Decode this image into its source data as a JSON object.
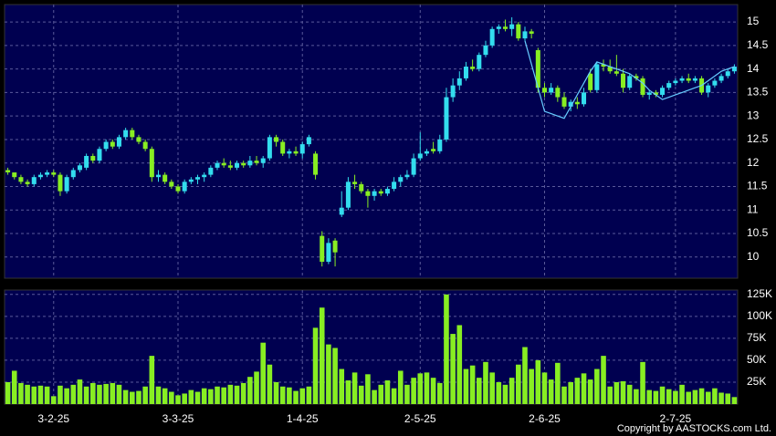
{
  "chart_data": {
    "type": "candlestick",
    "categories": [
      null,
      null,
      null,
      null,
      null,
      null,
      null,
      "3-2-25",
      null,
      null,
      null,
      null,
      null,
      null,
      null,
      null,
      null,
      null,
      null,
      null,
      null,
      null,
      null,
      null,
      null,
      null,
      "3-3-25",
      null,
      null,
      null,
      null,
      null,
      null,
      null,
      null,
      null,
      null,
      null,
      null,
      null,
      null,
      null,
      null,
      null,
      null,
      "1-4-25",
      null,
      null,
      null,
      null,
      null,
      null,
      null,
      null,
      null,
      null,
      null,
      null,
      null,
      null,
      null,
      null,
      null,
      "2-5-25",
      null,
      null,
      null,
      null,
      null,
      null,
      null,
      null,
      null,
      null,
      null,
      null,
      null,
      null,
      null,
      null,
      null,
      null,
      "2-6-25",
      null,
      null,
      null,
      null,
      null,
      null,
      null,
      null,
      null,
      null,
      null,
      null,
      null,
      null,
      null,
      null,
      null,
      null,
      null,
      "2-7-25",
      null,
      null,
      null,
      null,
      null,
      null,
      null,
      null,
      null
    ],
    "open": [
      11.85,
      11.8,
      11.7,
      11.6,
      11.55,
      11.7,
      11.75,
      11.8,
      11.75,
      11.4,
      11.7,
      11.85,
      11.9,
      12.15,
      12.05,
      12.3,
      12.45,
      12.35,
      12.55,
      12.7,
      12.55,
      12.45,
      12.3,
      11.7,
      11.75,
      11.6,
      11.5,
      11.4,
      11.6,
      11.65,
      11.7,
      11.75,
      11.9,
      12.0,
      11.95,
      11.9,
      12.0,
      11.95,
      12.05,
      12.0,
      12.1,
      12.55,
      12.45,
      12.2,
      12.25,
      12.2,
      12.4,
      12.2,
      10.45,
      9.9,
      10.35,
      10.9,
      11.05,
      11.6,
      11.55,
      11.4,
      11.3,
      11.4,
      11.35,
      11.45,
      11.6,
      11.7,
      11.75,
      12.1,
      12.2,
      12.3,
      12.25,
      12.5,
      13.4,
      13.65,
      13.8,
      14.05,
      14.0,
      14.3,
      14.5,
      14.85,
      14.9,
      14.85,
      14.95,
      14.65,
      14.8,
      14.4,
      13.6,
      13.5,
      13.6,
      13.4,
      13.2,
      13.3,
      13.25,
      13.9,
      13.55,
      14.1,
      14.05,
      13.95,
      13.9,
      13.6,
      13.85,
      13.8,
      13.45,
      13.5,
      13.45,
      13.6,
      13.7,
      13.75,
      13.8,
      13.75,
      13.8,
      13.5,
      13.65,
      13.75,
      13.85,
      13.95
    ],
    "high": [
      11.9,
      11.8,
      11.75,
      11.65,
      11.75,
      11.8,
      11.85,
      11.85,
      11.8,
      11.75,
      11.9,
      12.0,
      12.2,
      12.2,
      12.35,
      12.5,
      12.5,
      12.6,
      12.75,
      12.75,
      12.6,
      12.5,
      12.35,
      11.85,
      11.8,
      11.65,
      11.55,
      11.65,
      11.7,
      11.75,
      11.8,
      11.95,
      12.05,
      12.1,
      12.05,
      12.05,
      12.05,
      12.15,
      12.15,
      12.15,
      12.6,
      12.6,
      12.5,
      12.3,
      12.35,
      12.45,
      12.6,
      12.25,
      10.55,
      10.4,
      10.4,
      11.4,
      11.7,
      11.75,
      11.6,
      11.45,
      11.45,
      11.45,
      11.5,
      11.7,
      11.75,
      11.85,
      12.2,
      12.65,
      12.3,
      12.45,
      12.6,
      13.6,
      13.8,
      13.95,
      14.15,
      14.2,
      14.35,
      14.6,
      14.9,
      14.95,
      15.05,
      15.1,
      15.0,
      14.9,
      14.85,
      14.45,
      13.7,
      13.7,
      13.65,
      13.5,
      13.35,
      13.4,
      13.6,
      14.0,
      14.15,
      14.2,
      14.2,
      14.3,
      14.0,
      13.9,
      13.9,
      13.85,
      13.55,
      13.55,
      13.65,
      13.75,
      13.8,
      13.85,
      13.9,
      13.85,
      13.85,
      13.7,
      13.8,
      13.9,
      14.0,
      14.1
    ],
    "low": [
      11.75,
      11.65,
      11.55,
      11.5,
      11.5,
      11.65,
      11.7,
      11.7,
      11.3,
      11.35,
      11.65,
      11.8,
      11.85,
      12.0,
      12.0,
      12.25,
      12.3,
      12.3,
      12.5,
      12.5,
      12.4,
      12.25,
      11.6,
      11.6,
      11.55,
      11.45,
      11.35,
      11.35,
      11.55,
      11.55,
      11.6,
      11.7,
      11.85,
      11.9,
      11.85,
      11.85,
      11.9,
      11.9,
      11.95,
      11.9,
      12.05,
      12.35,
      12.15,
      12.1,
      12.15,
      12.1,
      12.35,
      11.65,
      9.8,
      9.85,
      9.8,
      10.85,
      11.0,
      11.45,
      11.35,
      11.05,
      11.2,
      11.3,
      11.3,
      11.4,
      11.5,
      11.65,
      11.7,
      12.05,
      12.15,
      12.2,
      12.2,
      12.45,
      13.3,
      13.55,
      13.75,
      13.95,
      13.95,
      14.25,
      14.45,
      14.75,
      14.8,
      14.7,
      14.6,
      14.6,
      14.65,
      13.5,
      13.4,
      13.45,
      13.3,
      13.15,
      13.1,
      13.15,
      13.2,
      13.5,
      13.5,
      13.95,
      13.9,
      13.85,
      13.5,
      13.55,
      13.75,
      13.4,
      13.35,
      13.4,
      13.4,
      13.55,
      13.65,
      13.7,
      13.7,
      13.7,
      13.45,
      13.4,
      13.6,
      13.7,
      13.8,
      13.9
    ],
    "close": [
      11.8,
      11.7,
      11.6,
      11.55,
      11.7,
      11.75,
      11.8,
      11.75,
      11.4,
      11.7,
      11.85,
      11.95,
      12.15,
      12.05,
      12.3,
      12.45,
      12.35,
      12.55,
      12.7,
      12.55,
      12.45,
      12.3,
      11.7,
      11.75,
      11.6,
      11.5,
      11.4,
      11.6,
      11.65,
      11.7,
      11.75,
      11.9,
      12.0,
      11.95,
      11.9,
      12.0,
      11.95,
      12.05,
      12.0,
      12.1,
      12.55,
      12.45,
      12.2,
      12.25,
      12.2,
      12.4,
      12.55,
      11.75,
      9.9,
      10.3,
      10.1,
      11.05,
      11.6,
      11.55,
      11.4,
      11.3,
      11.4,
      11.35,
      11.45,
      11.6,
      11.7,
      11.75,
      12.1,
      12.2,
      12.25,
      12.25,
      12.5,
      13.4,
      13.65,
      13.8,
      14.05,
      14.0,
      14.3,
      14.5,
      14.85,
      14.9,
      14.85,
      14.95,
      14.65,
      14.8,
      14.75,
      13.6,
      13.5,
      13.6,
      13.4,
      13.2,
      13.3,
      13.25,
      13.5,
      13.55,
      14.1,
      14.05,
      13.95,
      13.9,
      13.6,
      13.85,
      13.8,
      13.45,
      13.5,
      13.45,
      13.6,
      13.7,
      13.75,
      13.8,
      13.75,
      13.8,
      13.5,
      13.65,
      13.75,
      13.85,
      13.95,
      14.05
    ],
    "up_color": "#33ddee",
    "down_color": "#88ee22",
    "line": {
      "color": "#66ccff",
      "values": [
        null,
        null,
        null,
        null,
        null,
        null,
        null,
        null,
        null,
        null,
        null,
        null,
        null,
        null,
        null,
        null,
        null,
        null,
        null,
        null,
        null,
        null,
        null,
        null,
        null,
        null,
        null,
        null,
        null,
        null,
        null,
        null,
        null,
        null,
        null,
        null,
        null,
        null,
        null,
        null,
        null,
        null,
        null,
        null,
        null,
        null,
        null,
        null,
        null,
        null,
        null,
        null,
        null,
        null,
        null,
        null,
        null,
        null,
        null,
        null,
        null,
        null,
        null,
        null,
        null,
        null,
        null,
        null,
        null,
        null,
        null,
        null,
        null,
        null,
        null,
        null,
        null,
        null,
        null,
        14.6,
        14.1,
        13.6,
        13.1,
        13.05,
        13.0,
        12.95,
        13.2,
        13.45,
        13.7,
        13.95,
        14.15,
        14.1,
        14.05,
        14.0,
        13.95,
        13.9,
        13.8,
        13.7,
        13.55,
        13.45,
        13.35,
        13.4,
        13.45,
        13.5,
        13.55,
        13.6,
        13.65,
        13.75,
        13.85,
        13.95,
        14.0,
        14.05
      ]
    },
    "ylim": [
      9.55,
      15.37
    ],
    "yticks": [
      10,
      10.5,
      11,
      11.5,
      12,
      12.5,
      13,
      13.5,
      14,
      14.5,
      15
    ],
    "volume": {
      "color": "#88ee22",
      "values": [
        25000,
        38000,
        24000,
        22000,
        20000,
        21000,
        20000,
        9000,
        21000,
        18000,
        22000,
        28000,
        20000,
        24000,
        22000,
        23000,
        24000,
        22000,
        16000,
        14000,
        15000,
        20000,
        55000,
        20000,
        18000,
        14000,
        10000,
        12000,
        16000,
        14000,
        18000,
        17000,
        20000,
        19000,
        22000,
        21000,
        24000,
        31000,
        37000,
        70000,
        45000,
        25000,
        20000,
        19000,
        15000,
        18000,
        20000,
        87000,
        110000,
        68000,
        64000,
        40000,
        27000,
        36000,
        21000,
        34000,
        16000,
        22000,
        27000,
        18000,
        38000,
        22000,
        30000,
        35000,
        36000,
        30000,
        24000,
        125000,
        80000,
        90000,
        40000,
        44000,
        30000,
        48000,
        36000,
        25000,
        22000,
        30000,
        45000,
        65000,
        40000,
        50000,
        36000,
        28000,
        47000,
        20000,
        25000,
        30000,
        35000,
        28000,
        40000,
        55000,
        20000,
        25000,
        26000,
        22000,
        17000,
        48000,
        16000,
        15000,
        20000,
        17000,
        15000,
        22000,
        14000,
        16000,
        18000,
        14000,
        18000,
        13000,
        12000,
        8000
      ],
      "ylim": [
        0,
        130000
      ],
      "yticks": [
        {
          "value": 25000,
          "label": "25K"
        },
        {
          "value": 50000,
          "label": "50K"
        },
        {
          "value": 75000,
          "label": "75K"
        },
        {
          "value": 100000,
          "label": "100K"
        },
        {
          "value": 125000,
          "label": "125K"
        }
      ]
    },
    "grid": true,
    "copyright": "Copyright by AASTOCKS.com Ltd."
  }
}
